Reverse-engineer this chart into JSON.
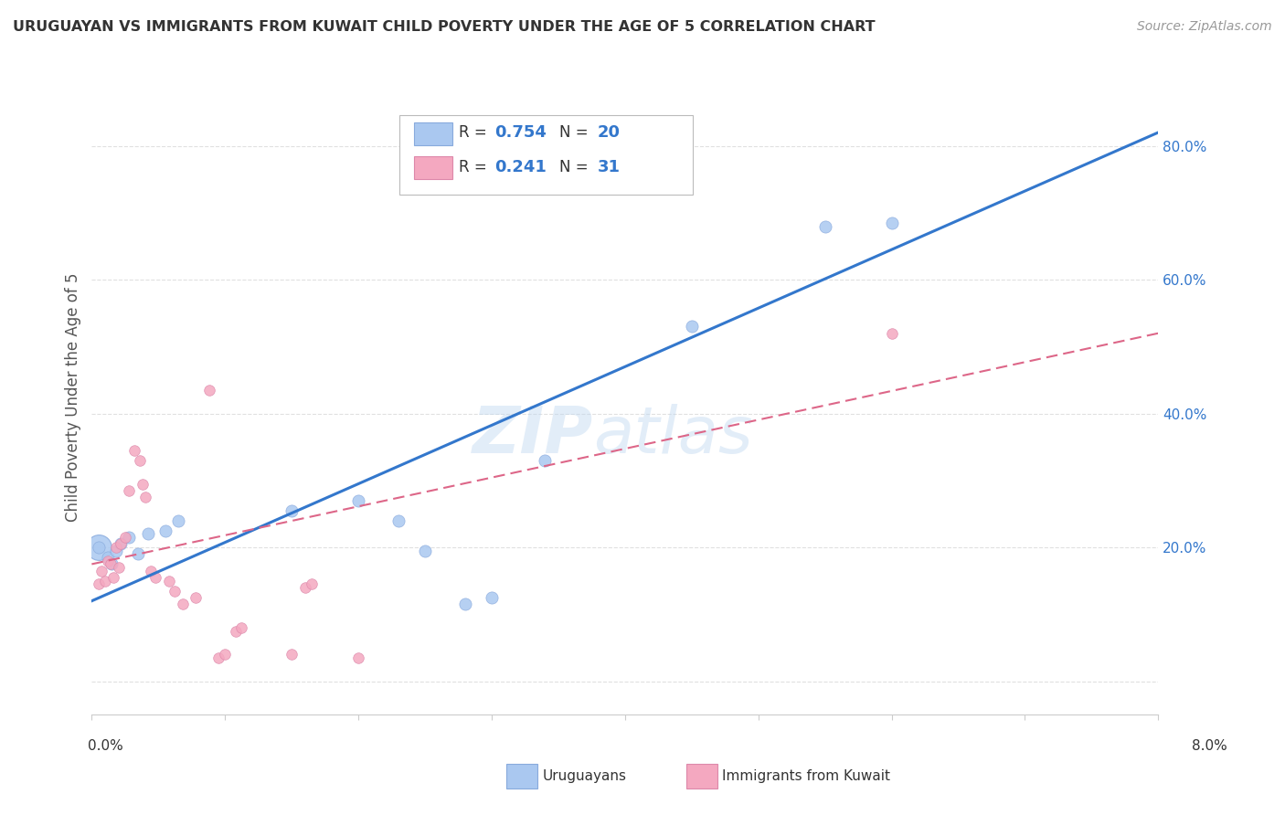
{
  "title": "URUGUAYAN VS IMMIGRANTS FROM KUWAIT CHILD POVERTY UNDER THE AGE OF 5 CORRELATION CHART",
  "source": "Source: ZipAtlas.com",
  "ylabel": "Child Poverty Under the Age of 5",
  "xlim": [
    0.0,
    8.0
  ],
  "ylim": [
    -5.0,
    90.0
  ],
  "legend1_R": "0.754",
  "legend1_N": "20",
  "legend2_R": "0.241",
  "legend2_N": "31",
  "uruguayan_color": "#aac8f0",
  "kuwait_color": "#f4a8c0",
  "uruguayan_line_color": "#3377cc",
  "kuwait_line_color": "#dd6688",
  "uruguayan_scatter": [
    [
      0.05,
      20.0
    ],
    [
      0.12,
      18.5
    ],
    [
      0.15,
      17.5
    ],
    [
      0.18,
      19.5
    ],
    [
      0.22,
      20.5
    ],
    [
      0.28,
      21.5
    ],
    [
      0.35,
      19.0
    ],
    [
      0.42,
      22.0
    ],
    [
      0.55,
      22.5
    ],
    [
      0.65,
      24.0
    ],
    [
      1.5,
      25.5
    ],
    [
      2.0,
      27.0
    ],
    [
      2.3,
      24.0
    ],
    [
      2.5,
      19.5
    ],
    [
      2.8,
      11.5
    ],
    [
      3.0,
      12.5
    ],
    [
      3.4,
      33.0
    ],
    [
      4.5,
      53.0
    ],
    [
      5.5,
      68.0
    ],
    [
      6.0,
      68.5
    ]
  ],
  "kuwait_scatter": [
    [
      0.05,
      14.5
    ],
    [
      0.07,
      16.5
    ],
    [
      0.1,
      15.0
    ],
    [
      0.12,
      18.0
    ],
    [
      0.14,
      17.5
    ],
    [
      0.16,
      15.5
    ],
    [
      0.18,
      20.0
    ],
    [
      0.2,
      17.0
    ],
    [
      0.22,
      20.5
    ],
    [
      0.25,
      21.5
    ],
    [
      0.28,
      28.5
    ],
    [
      0.32,
      34.5
    ],
    [
      0.36,
      33.0
    ],
    [
      0.38,
      29.5
    ],
    [
      0.4,
      27.5
    ],
    [
      0.44,
      16.5
    ],
    [
      0.48,
      15.5
    ],
    [
      0.58,
      15.0
    ],
    [
      0.62,
      13.5
    ],
    [
      0.68,
      11.5
    ],
    [
      0.78,
      12.5
    ],
    [
      0.88,
      43.5
    ],
    [
      0.95,
      3.5
    ],
    [
      1.0,
      4.0
    ],
    [
      1.08,
      7.5
    ],
    [
      1.12,
      8.0
    ],
    [
      1.5,
      4.0
    ],
    [
      1.6,
      14.0
    ],
    [
      1.65,
      14.5
    ],
    [
      2.0,
      3.5
    ],
    [
      6.0,
      52.0
    ]
  ],
  "large_blue_x": 0.05,
  "large_blue_y": 20.0,
  "large_blue_size": 400,
  "uruguayan_size": 90,
  "kuwait_size": 70,
  "uru_line_x0": 0.0,
  "uru_line_y0": 12.0,
  "uru_line_x1": 8.0,
  "uru_line_y1": 82.0,
  "kuw_line_x0": 0.0,
  "kuw_line_y0": 17.5,
  "kuw_line_x1": 8.0,
  "kuw_line_y1": 52.0,
  "background_color": "#ffffff",
  "grid_color": "#dddddd"
}
